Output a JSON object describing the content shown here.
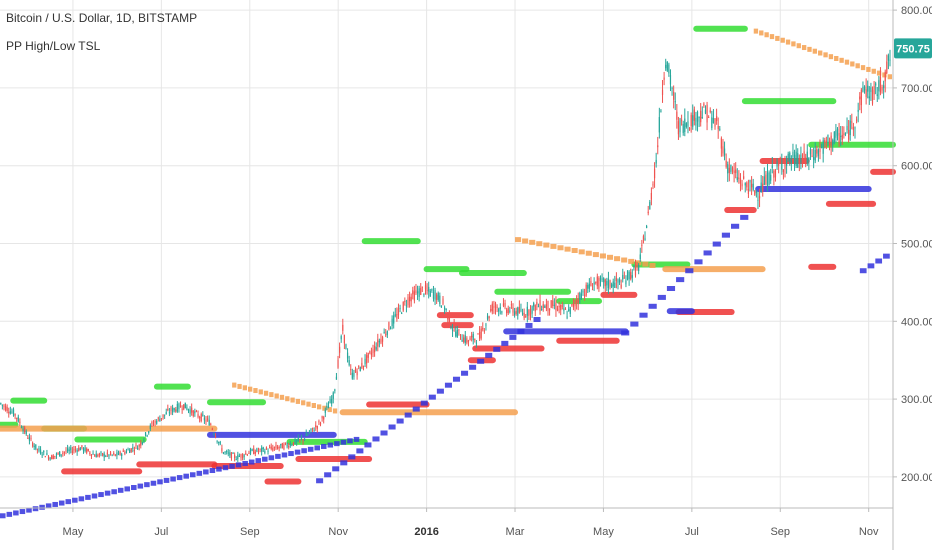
{
  "header": {
    "title": "Bitcoin / U.S. Dollar, 1D, BITSTAMP",
    "indicator": "PP High/Low TSL"
  },
  "last_price": {
    "label": "750.75",
    "value": 750.75,
    "color": "#26a69a"
  },
  "colors": {
    "grid": "#e6e6e6",
    "up": "#26a69a",
    "down": "#ef5350",
    "green_level": "#33dd33",
    "red_level": "#ee3333",
    "blue_level": "#3333dd",
    "orange_level": "#f5a050"
  },
  "chart_data": {
    "type": "candlestick",
    "title": "Bitcoin / U.S. Dollar, 1D, BITSTAMP",
    "x_ticks": [
      {
        "label": "May",
        "t": 1.0
      },
      {
        "label": "Jul",
        "t": 3.0
      },
      {
        "label": "Sep",
        "t": 5.0
      },
      {
        "label": "Nov",
        "t": 7.0
      },
      {
        "label": "2016",
        "t": 9.0,
        "bold": true
      },
      {
        "label": "Mar",
        "t": 11.0
      },
      {
        "label": "May",
        "t": 13.0
      },
      {
        "label": "Jul",
        "t": 15.0
      },
      {
        "label": "Sep",
        "t": 17.0
      },
      {
        "label": "Nov",
        "t": 19.0
      }
    ],
    "x_unit": "months since 2015-04-01",
    "xlim": [
      -0.65,
      19.55
    ],
    "y_ticks": [
      200,
      300,
      400,
      500,
      600,
      700,
      800
    ],
    "y_tick_labels": [
      "200.00",
      "300.00",
      "400.00",
      "500.00",
      "600.00",
      "700.00",
      "800.00"
    ],
    "ylim": [
      160,
      813
    ],
    "price_path": [
      [
        -0.65,
        295
      ],
      [
        -0.3,
        280
      ],
      [
        0.0,
        250
      ],
      [
        0.2,
        235
      ],
      [
        0.5,
        225
      ],
      [
        0.8,
        232
      ],
      [
        1.2,
        237
      ],
      [
        1.5,
        228
      ],
      [
        2.0,
        228
      ],
      [
        2.5,
        240
      ],
      [
        2.8,
        268
      ],
      [
        3.2,
        285
      ],
      [
        3.5,
        292
      ],
      [
        3.8,
        280
      ],
      [
        4.1,
        270
      ],
      [
        4.4,
        232
      ],
      [
        4.7,
        225
      ],
      [
        5.0,
        232
      ],
      [
        5.4,
        235
      ],
      [
        5.8,
        240
      ],
      [
        6.2,
        248
      ],
      [
        6.6,
        270
      ],
      [
        6.9,
        305
      ],
      [
        7.1,
        390
      ],
      [
        7.3,
        330
      ],
      [
        7.5,
        340
      ],
      [
        7.7,
        355
      ],
      [
        8.0,
        380
      ],
      [
        8.3,
        405
      ],
      [
        8.6,
        430
      ],
      [
        8.9,
        440
      ],
      [
        9.2,
        435
      ],
      [
        9.4,
        420
      ],
      [
        9.6,
        390
      ],
      [
        9.9,
        375
      ],
      [
        10.2,
        380
      ],
      [
        10.5,
        420
      ],
      [
        10.9,
        415
      ],
      [
        11.2,
        410
      ],
      [
        11.5,
        420
      ],
      [
        11.9,
        420
      ],
      [
        12.2,
        410
      ],
      [
        12.5,
        435
      ],
      [
        12.8,
        450
      ],
      [
        13.1,
        448
      ],
      [
        13.4,
        450
      ],
      [
        13.8,
        470
      ],
      [
        14.0,
        530
      ],
      [
        14.2,
        610
      ],
      [
        14.4,
        740
      ],
      [
        14.55,
        700
      ],
      [
        14.7,
        650
      ],
      [
        15.0,
        660
      ],
      [
        15.3,
        670
      ],
      [
        15.6,
        650
      ],
      [
        15.8,
        600
      ],
      [
        16.1,
        580
      ],
      [
        16.5,
        565
      ],
      [
        16.8,
        590
      ],
      [
        17.2,
        608
      ],
      [
        17.6,
        608
      ],
      [
        17.9,
        620
      ],
      [
        18.2,
        635
      ],
      [
        18.5,
        640
      ],
      [
        18.7,
        660
      ],
      [
        18.9,
        700
      ],
      [
        19.1,
        690
      ],
      [
        19.3,
        705
      ],
      [
        19.5,
        740
      ]
    ],
    "levels": [
      {
        "color": "green",
        "y": 298,
        "x0": -0.35,
        "x1": 0.35
      },
      {
        "color": "green",
        "y": 267,
        "x0": -0.65,
        "x1": -0.3
      },
      {
        "color": "green",
        "y": 262,
        "x0": 0.35,
        "x1": 1.25
      },
      {
        "color": "green",
        "y": 248,
        "x0": 1.1,
        "x1": 2.6
      },
      {
        "color": "green",
        "y": 316,
        "x0": 2.9,
        "x1": 3.6
      },
      {
        "color": "green",
        "y": 296,
        "x0": 4.1,
        "x1": 5.3
      },
      {
        "color": "green",
        "y": 245,
        "x0": 5.9,
        "x1": 7.6
      },
      {
        "color": "green",
        "y": 503,
        "x0": 7.6,
        "x1": 8.8
      },
      {
        "color": "green",
        "y": 467,
        "x0": 9.0,
        "x1": 9.9
      },
      {
        "color": "green",
        "y": 462,
        "x0": 9.8,
        "x1": 11.2
      },
      {
        "color": "green",
        "y": 438,
        "x0": 10.6,
        "x1": 12.2
      },
      {
        "color": "green",
        "y": 426,
        "x0": 12.0,
        "x1": 12.9
      },
      {
        "color": "green",
        "y": 473,
        "x0": 13.7,
        "x1": 14.9
      },
      {
        "color": "green",
        "y": 776,
        "x0": 15.1,
        "x1": 16.2
      },
      {
        "color": "green",
        "y": 683,
        "x0": 16.2,
        "x1": 18.2
      },
      {
        "color": "green",
        "y": 627,
        "x0": 17.7,
        "x1": 19.55
      },
      {
        "color": "red",
        "y": 207,
        "x0": 0.8,
        "x1": 2.5
      },
      {
        "color": "red",
        "y": 216,
        "x0": 2.5,
        "x1": 4.2
      },
      {
        "color": "red",
        "y": 214,
        "x0": 4.2,
        "x1": 5.7
      },
      {
        "color": "red",
        "y": 194,
        "x0": 5.4,
        "x1": 6.1
      },
      {
        "color": "red",
        "y": 223,
        "x0": 6.1,
        "x1": 7.7
      },
      {
        "color": "red",
        "y": 293,
        "x0": 7.7,
        "x1": 9.0
      },
      {
        "color": "red",
        "y": 408,
        "x0": 9.3,
        "x1": 10.0
      },
      {
        "color": "red",
        "y": 395,
        "x0": 9.4,
        "x1": 10.0
      },
      {
        "color": "red",
        "y": 365,
        "x0": 10.1,
        "x1": 11.6
      },
      {
        "color": "red",
        "y": 350,
        "x0": 10.0,
        "x1": 10.5
      },
      {
        "color": "red",
        "y": 375,
        "x0": 12.0,
        "x1": 13.3
      },
      {
        "color": "red",
        "y": 434,
        "x0": 13.0,
        "x1": 13.7
      },
      {
        "color": "red",
        "y": 412,
        "x0": 14.7,
        "x1": 15.9
      },
      {
        "color": "red",
        "y": 543,
        "x0": 15.8,
        "x1": 16.4
      },
      {
        "color": "red",
        "y": 606,
        "x0": 16.6,
        "x1": 17.6
      },
      {
        "color": "red",
        "y": 470,
        "x0": 17.7,
        "x1": 18.2
      },
      {
        "color": "red",
        "y": 551,
        "x0": 18.1,
        "x1": 19.1
      },
      {
        "color": "red",
        "y": 592,
        "x0": 19.1,
        "x1": 20.0
      },
      {
        "color": "blue",
        "y": 254,
        "x0": 4.1,
        "x1": 6.9
      },
      {
        "color": "blue",
        "y": 387,
        "x0": 10.8,
        "x1": 13.5
      },
      {
        "color": "blue",
        "y": 570,
        "x0": 16.5,
        "x1": 19.0
      },
      {
        "color": "blue",
        "y": 413,
        "x0": 14.5,
        "x1": 15.0
      },
      {
        "color": "orange",
        "y": 262,
        "x0": -0.65,
        "x1": 4.2
      },
      {
        "color": "orange",
        "y": 283,
        "x0": 7.1,
        "x1": 11.0
      },
      {
        "color": "orange",
        "y": 467,
        "x0": 14.4,
        "x1": 16.6
      }
    ],
    "trails": [
      {
        "color": "blue",
        "from": [
          -0.65,
          150
        ],
        "to": [
          7.5,
          250
        ],
        "steps": 55
      },
      {
        "color": "blue",
        "from": [
          6.5,
          195
        ],
        "to": [
          11.6,
          410
        ],
        "steps": 28
      },
      {
        "color": "blue",
        "from": [
          13.4,
          385
        ],
        "to": [
          16.3,
          545
        ],
        "steps": 14
      },
      {
        "color": "blue",
        "from": [
          18.8,
          465
        ],
        "to": [
          19.5,
          490
        ],
        "steps": 4
      },
      {
        "color": "orange",
        "from": [
          4.6,
          318
        ],
        "to": [
          7.0,
          283
        ],
        "steps": 20
      },
      {
        "color": "orange",
        "from": [
          11.0,
          505
        ],
        "to": [
          14.2,
          470
        ],
        "steps": 20
      },
      {
        "color": "orange",
        "from": [
          16.4,
          773
        ],
        "to": [
          19.55,
          712
        ],
        "steps": 26
      }
    ]
  }
}
